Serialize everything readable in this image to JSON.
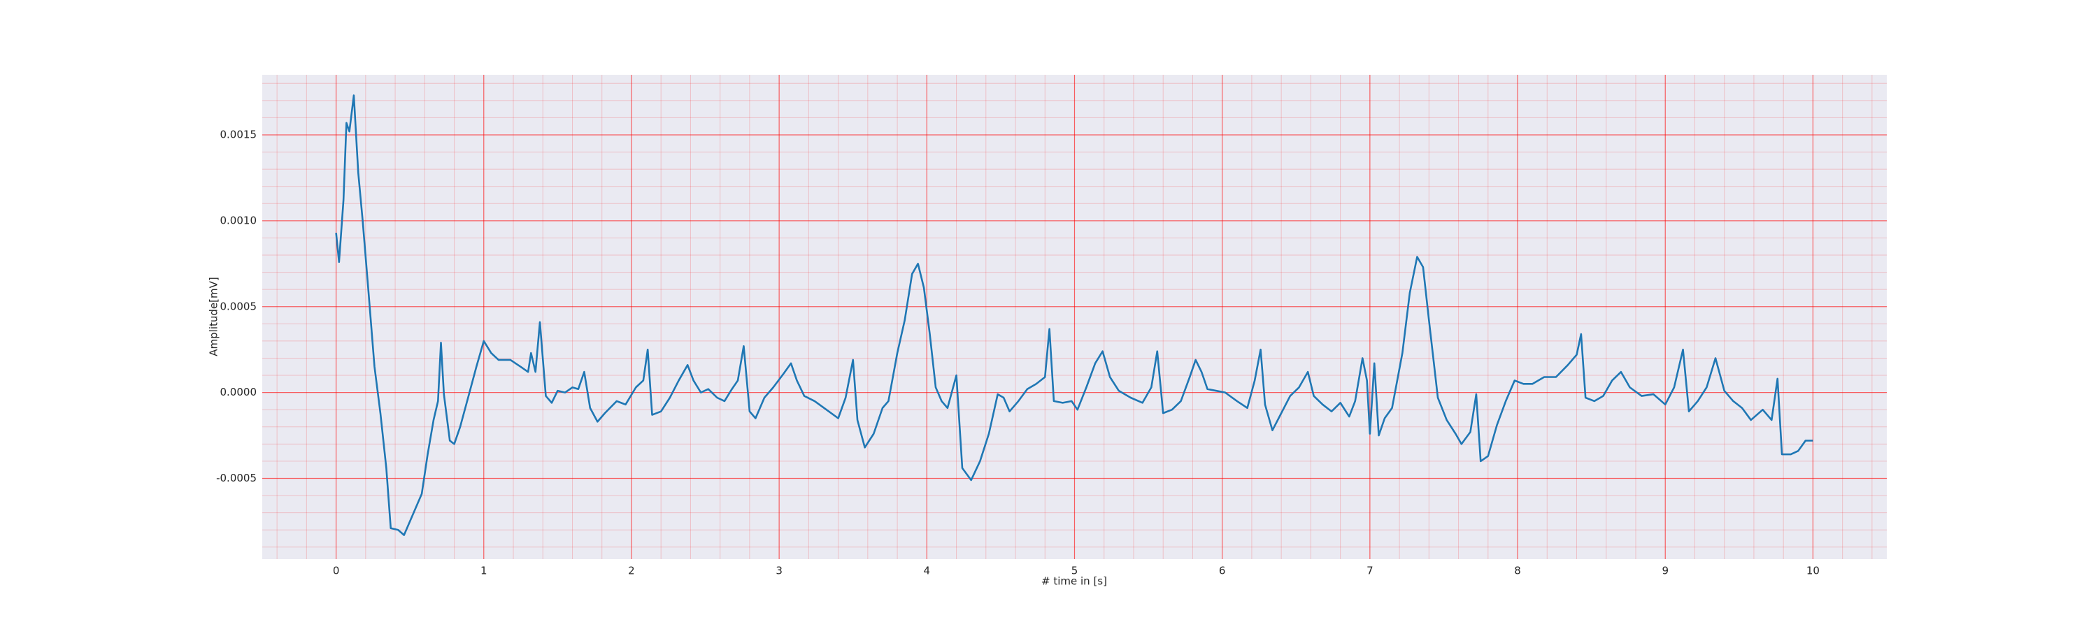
{
  "chart_data": {
    "type": "line",
    "xlabel": "# time in [s]",
    "ylabel": "Amplitude[mV]",
    "x": [
      0.0,
      0.02,
      0.05,
      0.07,
      0.09,
      0.12,
      0.15,
      0.18,
      0.22,
      0.26,
      0.3,
      0.34,
      0.37,
      0.42,
      0.46,
      0.52,
      0.58,
      0.62,
      0.66,
      0.69,
      0.71,
      0.73,
      0.77,
      0.8,
      0.84,
      0.9,
      0.95,
      1.0,
      1.05,
      1.1,
      1.18,
      1.25,
      1.3,
      1.32,
      1.35,
      1.38,
      1.42,
      1.46,
      1.5,
      1.55,
      1.6,
      1.64,
      1.68,
      1.72,
      1.77,
      1.82,
      1.9,
      1.96,
      2.03,
      2.08,
      2.11,
      2.14,
      2.2,
      2.26,
      2.32,
      2.38,
      2.42,
      2.47,
      2.52,
      2.58,
      2.63,
      2.68,
      2.72,
      2.76,
      2.8,
      2.84,
      2.9,
      2.96,
      3.03,
      3.08,
      3.12,
      3.17,
      3.24,
      3.32,
      3.4,
      3.45,
      3.5,
      3.53,
      3.58,
      3.64,
      3.7,
      3.74,
      3.8,
      3.85,
      3.9,
      3.94,
      3.98,
      4.02,
      4.06,
      4.1,
      4.14,
      4.2,
      4.24,
      4.3,
      4.36,
      4.42,
      4.48,
      4.52,
      4.56,
      4.62,
      4.68,
      4.74,
      4.8,
      4.83,
      4.86,
      4.92,
      4.98,
      5.02,
      5.08,
      5.14,
      5.19,
      5.24,
      5.3,
      5.38,
      5.46,
      5.52,
      5.56,
      5.6,
      5.66,
      5.72,
      5.78,
      5.82,
      5.86,
      5.9,
      5.96,
      6.02,
      6.1,
      6.17,
      6.22,
      6.26,
      6.29,
      6.34,
      6.4,
      6.46,
      6.52,
      6.58,
      6.62,
      6.68,
      6.74,
      6.8,
      6.86,
      6.9,
      6.95,
      6.98,
      7.0,
      7.03,
      7.06,
      7.1,
      7.15,
      7.22,
      7.27,
      7.32,
      7.36,
      7.4,
      7.46,
      7.52,
      7.58,
      7.62,
      7.68,
      7.72,
      7.75,
      7.8,
      7.86,
      7.92,
      7.98,
      8.04,
      8.1,
      8.18,
      8.26,
      8.34,
      8.4,
      8.43,
      8.46,
      8.52,
      8.58,
      8.64,
      8.7,
      8.76,
      8.84,
      8.92,
      9.0,
      9.06,
      9.12,
      9.16,
      9.22,
      9.28,
      9.34,
      9.4,
      9.46,
      9.52,
      9.58,
      9.66,
      9.72,
      9.76,
      9.79,
      9.85,
      9.9,
      9.95,
      10.0
    ],
    "series": [
      {
        "name": "Amplitude",
        "color": "#1f77b4",
        "values": [
          0.00093,
          0.00076,
          0.00112,
          0.00157,
          0.00152,
          0.00173,
          0.00128,
          0.001,
          0.00058,
          0.00015,
          -0.00012,
          -0.00044,
          -0.00079,
          -0.0008,
          -0.00083,
          -0.00071,
          -0.00059,
          -0.00036,
          -0.00016,
          -5e-05,
          0.00029,
          -1e-05,
          -0.00028,
          -0.0003,
          -0.0002,
          -1e-05,
          0.00015,
          0.0003,
          0.00023,
          0.00019,
          0.00019,
          0.00015,
          0.00012,
          0.00023,
          0.00012,
          0.00041,
          -2e-05,
          -6e-05,
          1e-05,
          0.0,
          3e-05,
          2e-05,
          0.00012,
          -9e-05,
          -0.00017,
          -0.00012,
          -5e-05,
          -7e-05,
          3e-05,
          7e-05,
          0.00025,
          -0.00013,
          -0.00011,
          -3e-05,
          7e-05,
          0.00016,
          7e-05,
          0.0,
          2e-05,
          -3e-05,
          -5e-05,
          2e-05,
          7e-05,
          0.00027,
          -0.00011,
          -0.00015,
          -3e-05,
          3e-05,
          0.00011,
          0.00017,
          7e-05,
          -2e-05,
          -5e-05,
          -0.0001,
          -0.00015,
          -3e-05,
          0.00019,
          -0.00016,
          -0.00032,
          -0.00024,
          -9e-05,
          -5e-05,
          0.00023,
          0.00042,
          0.00069,
          0.00075,
          0.00061,
          0.00034,
          3e-05,
          -5e-05,
          -9e-05,
          0.0001,
          -0.00044,
          -0.00051,
          -0.0004,
          -0.00024,
          -1e-05,
          -3e-05,
          -0.00011,
          -5e-05,
          2e-05,
          5e-05,
          9e-05,
          0.00037,
          -5e-05,
          -6e-05,
          -5e-05,
          -0.0001,
          3e-05,
          0.00017,
          0.00024,
          9e-05,
          1e-05,
          -3e-05,
          -6e-05,
          3e-05,
          0.00024,
          -0.00012,
          -0.0001,
          -5e-05,
          9e-05,
          0.00019,
          0.00012,
          2e-05,
          1e-05,
          0.0,
          -5e-05,
          -9e-05,
          7e-05,
          0.00025,
          -7e-05,
          -0.00022,
          -0.00012,
          -2e-05,
          3e-05,
          0.00012,
          -2e-05,
          -7e-05,
          -0.00011,
          -6e-05,
          -0.00014,
          -5e-05,
          0.0002,
          7e-05,
          -0.00024,
          0.00017,
          -0.00025,
          -0.00015,
          -9e-05,
          0.00023,
          0.00058,
          0.00079,
          0.00073,
          0.00042,
          -3e-05,
          -0.00016,
          -0.00024,
          -0.0003,
          -0.00023,
          -1e-05,
          -0.0004,
          -0.00037,
          -0.00019,
          -5e-05,
          7e-05,
          5e-05,
          5e-05,
          9e-05,
          9e-05,
          0.00016,
          0.00022,
          0.00034,
          -3e-05,
          -5e-05,
          -2e-05,
          7e-05,
          0.00012,
          3e-05,
          -2e-05,
          -1e-05,
          -7e-05,
          3e-05,
          0.00025,
          -0.00011,
          -5e-05,
          3e-05,
          0.0002,
          1e-05,
          -5e-05,
          -9e-05,
          -0.00016,
          -0.0001,
          -0.00016,
          8e-05,
          -0.00036,
          -0.00036,
          -0.00034,
          -0.00028,
          -0.00028
        ]
      }
    ],
    "xlim": [
      -0.5,
      10.5
    ],
    "xticks": [
      0,
      1,
      2,
      3,
      4,
      5,
      6,
      7,
      8,
      9,
      10
    ],
    "ylim": [
      -0.00097,
      0.00185
    ],
    "yticks": [
      {
        "value": -0.0005,
        "label": "-0.0005"
      },
      {
        "value": 0,
        "label": "0.0000"
      },
      {
        "value": 0.0005,
        "label": "0.0005"
      },
      {
        "value": 0.001,
        "label": "0.0010"
      },
      {
        "value": 0.0015,
        "label": "0.0015"
      }
    ],
    "grid": true,
    "grid_color": "#ff0000",
    "background": "#eaeaf2"
  }
}
